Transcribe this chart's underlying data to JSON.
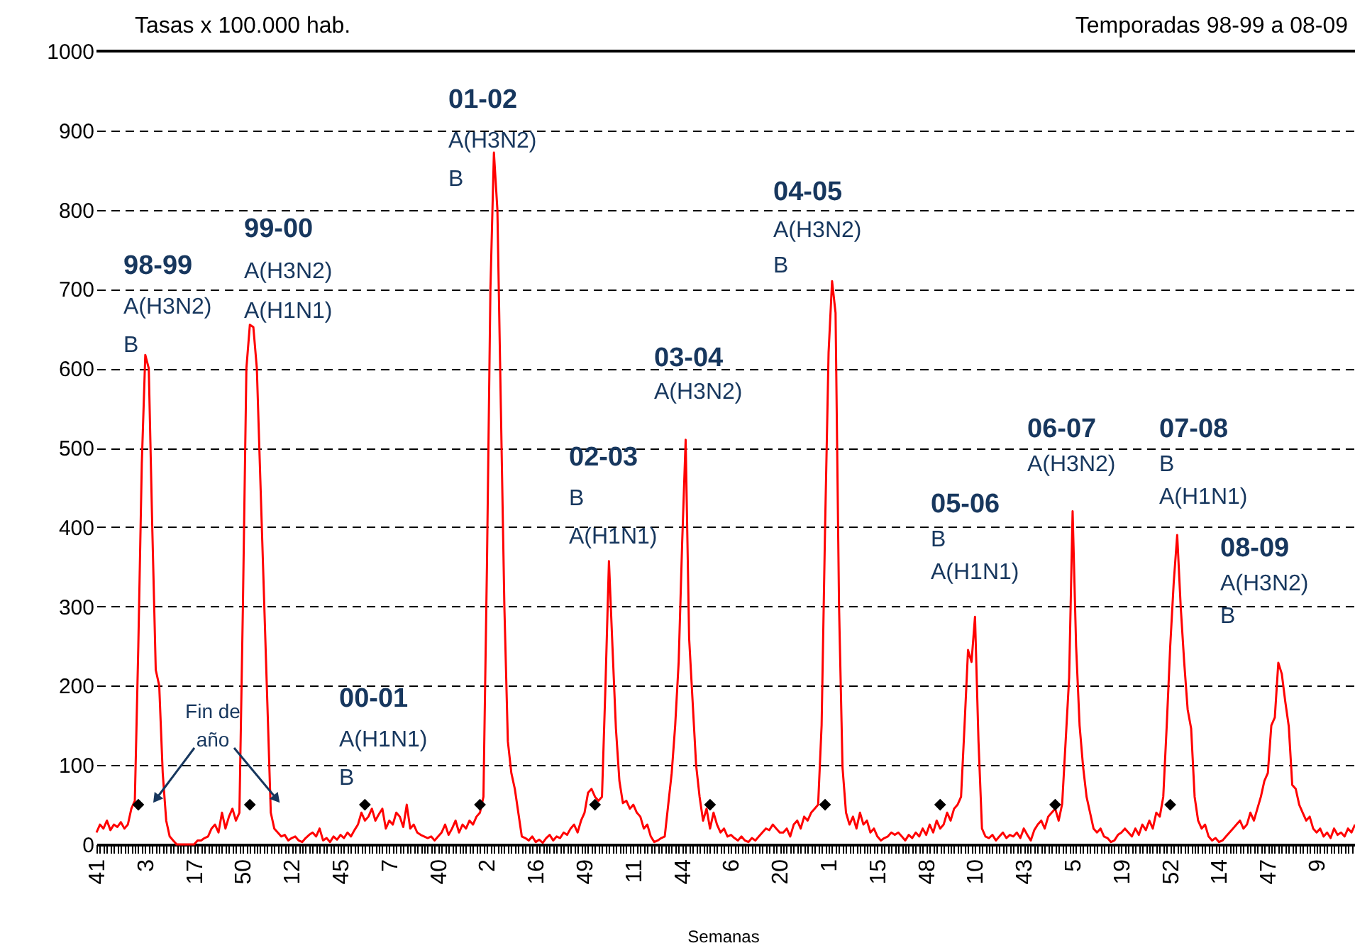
{
  "chart_data": {
    "type": "line",
    "title": "Temporadas 98-99 a 08-09",
    "ylabel": "Tasas  x 100.000 hab.",
    "xlabel": "Semanas",
    "categories": [
      "41",
      null,
      null,
      null,
      null,
      null,
      null,
      null,
      null,
      null,
      null,
      null,
      null,
      null,
      "3",
      null,
      null,
      null,
      null,
      null,
      null,
      null,
      null,
      null,
      null,
      null,
      null,
      null,
      "17",
      null,
      null,
      null,
      null,
      null,
      null,
      null,
      null,
      null,
      null,
      null,
      null,
      null,
      "50",
      null,
      null,
      null,
      null,
      null,
      null,
      null,
      null,
      null,
      null,
      null,
      null,
      null,
      "12",
      null,
      null,
      null,
      null,
      null,
      null,
      null,
      null,
      null,
      null,
      null,
      null,
      null,
      "45",
      null,
      null,
      null,
      null,
      null,
      null,
      null,
      null,
      null,
      null,
      null,
      null,
      null,
      "7",
      null,
      null,
      null,
      null,
      null,
      null,
      null,
      null,
      null,
      null,
      null,
      null,
      null,
      "40",
      null,
      null,
      null,
      null,
      null,
      null,
      null,
      null,
      null,
      null,
      null,
      null,
      null,
      "2",
      null,
      null,
      null,
      null,
      null,
      null,
      null,
      null,
      null,
      null,
      null,
      null,
      null,
      "16",
      null,
      null,
      null,
      null,
      null,
      null,
      null,
      null,
      null,
      null,
      null,
      null,
      null,
      "49",
      null,
      null,
      null,
      null,
      null,
      null,
      null,
      null,
      null,
      null,
      null,
      null,
      null,
      "11",
      null,
      null,
      null,
      null,
      null,
      null,
      null,
      null,
      null,
      null,
      null,
      null,
      null,
      "44",
      null,
      null,
      null,
      null,
      null,
      null,
      null,
      null,
      null,
      null,
      null,
      null,
      null,
      "6",
      null,
      null,
      null,
      null,
      null,
      null,
      null,
      null,
      null,
      null,
      null,
      null,
      null,
      "20",
      null,
      null,
      null,
      null,
      null,
      null,
      null,
      null,
      null,
      null,
      null,
      null,
      null,
      "1",
      null,
      null,
      null,
      null,
      null,
      null,
      null,
      null,
      null,
      null,
      null,
      null,
      null,
      "15",
      null,
      null,
      null,
      null,
      null,
      null,
      null,
      null,
      null,
      null,
      null,
      null,
      null,
      "48",
      null,
      null,
      null,
      null,
      null,
      null,
      null,
      null,
      null,
      null,
      null,
      null,
      null,
      "10",
      null,
      null,
      null,
      null,
      null,
      null,
      null,
      null,
      null,
      null,
      null,
      null,
      null,
      "43",
      null,
      null,
      null,
      null,
      null,
      null,
      null,
      null,
      null,
      null,
      null,
      null,
      null,
      "5",
      null,
      null,
      null,
      null,
      null,
      null,
      null,
      null,
      null,
      null,
      null,
      null,
      null,
      "19",
      null,
      null,
      null,
      null,
      null,
      null,
      null,
      null,
      null,
      null,
      null,
      null,
      null,
      "52",
      null,
      null,
      null,
      null,
      null,
      null,
      null,
      null,
      null,
      null,
      null,
      null,
      null,
      "14",
      null,
      null,
      null,
      null,
      null,
      null,
      null,
      null,
      null,
      null,
      null,
      null,
      null,
      "47",
      null,
      null,
      null,
      null,
      null,
      null,
      null,
      null,
      null,
      null,
      null,
      null,
      null,
      "9",
      null,
      null,
      null,
      null,
      null,
      null,
      null,
      null,
      null,
      null,
      null
    ],
    "series": [
      {
        "color": "#ff0000",
        "marker": "none",
        "values": [
          15,
          25,
          20,
          30,
          18,
          25,
          22,
          28,
          20,
          25,
          45,
          55,
          250,
          480,
          617,
          600,
          400,
          220,
          200,
          90,
          30,
          10,
          5,
          0,
          0,
          0,
          0,
          0,
          0,
          5,
          5,
          8,
          10,
          20,
          25,
          15,
          40,
          20,
          35,
          45,
          30,
          40,
          300,
          600,
          655,
          652,
          600,
          460,
          320,
          180,
          40,
          20,
          15,
          10,
          12,
          5,
          8,
          10,
          5,
          3,
          8,
          12,
          15,
          10,
          20,
          5,
          8,
          3,
          10,
          6,
          12,
          8,
          15,
          10,
          18,
          25,
          40,
          30,
          35,
          45,
          30,
          38,
          45,
          20,
          30,
          25,
          40,
          35,
          22,
          50,
          20,
          25,
          15,
          12,
          10,
          8,
          10,
          5,
          10,
          15,
          25,
          12,
          20,
          30,
          15,
          25,
          20,
          30,
          25,
          35,
          40,
          60,
          350,
          700,
          872,
          800,
          550,
          300,
          130,
          90,
          70,
          40,
          10,
          8,
          5,
          10,
          3,
          6,
          2,
          8,
          12,
          5,
          10,
          8,
          15,
          12,
          20,
          25,
          15,
          30,
          40,
          65,
          70,
          60,
          55,
          60,
          200,
          357,
          250,
          146,
          80,
          52,
          55,
          45,
          50,
          40,
          35,
          20,
          25,
          10,
          3,
          5,
          8,
          10,
          50,
          90,
          150,
          230,
          380,
          510,
          260,
          180,
          100,
          60,
          30,
          45,
          20,
          40,
          25,
          15,
          20,
          10,
          12,
          8,
          5,
          10,
          5,
          3,
          8,
          5,
          10,
          15,
          20,
          18,
          25,
          20,
          15,
          15,
          20,
          10,
          25,
          30,
          20,
          35,
          30,
          40,
          45,
          50,
          150,
          400,
          620,
          710,
          670,
          300,
          97,
          40,
          25,
          35,
          20,
          40,
          25,
          30,
          15,
          20,
          10,
          5,
          8,
          10,
          15,
          12,
          15,
          10,
          5,
          12,
          8,
          15,
          10,
          20,
          12,
          25,
          15,
          30,
          20,
          25,
          40,
          30,
          45,
          50,
          60,
          150,
          245,
          230,
          287,
          130,
          20,
          10,
          8,
          12,
          5,
          10,
          15,
          8,
          12,
          10,
          15,
          8,
          20,
          12,
          5,
          18,
          25,
          30,
          20,
          35,
          40,
          45,
          30,
          51,
          130,
          210,
          420,
          250,
          150,
          98,
          60,
          40,
          20,
          15,
          20,
          10,
          8,
          3,
          5,
          12,
          15,
          20,
          15,
          10,
          20,
          12,
          25,
          18,
          30,
          20,
          40,
          35,
          60,
          150,
          250,
          330,
          390,
          300,
          230,
          170,
          146,
          60,
          30,
          20,
          25,
          10,
          5,
          8,
          3,
          5,
          10,
          15,
          20,
          25,
          30,
          20,
          25,
          40,
          30,
          45,
          60,
          80,
          90,
          150,
          160,
          229,
          215,
          180,
          149,
          75,
          70,
          50,
          40,
          30,
          35,
          20,
          15,
          20,
          10,
          15,
          8,
          20,
          12,
          15,
          10,
          20,
          15,
          25
        ]
      },
      {
        "type": "scatter",
        "marker": "diamond",
        "color": "#000000",
        "values": [
          null,
          null,
          null,
          null,
          null,
          null,
          null,
          null,
          null,
          null,
          null,
          null,
          50,
          null,
          null,
          null,
          null,
          null,
          null,
          null,
          null,
          null,
          null,
          null,
          null,
          null,
          null,
          null,
          null,
          null,
          null,
          null,
          null,
          null,
          null,
          null,
          null,
          null,
          null,
          null,
          null,
          null,
          null,
          null,
          50,
          null,
          null,
          null,
          null,
          null,
          null,
          null,
          null,
          null,
          null,
          null,
          null,
          null,
          null,
          null,
          null,
          null,
          null,
          null,
          null,
          null,
          null,
          null,
          null,
          null,
          null,
          null,
          null,
          null,
          null,
          null,
          null,
          50,
          null,
          null,
          null,
          null,
          null,
          null,
          null,
          null,
          null,
          null,
          null,
          null,
          null,
          null,
          null,
          null,
          null,
          null,
          null,
          null,
          null,
          null,
          null,
          null,
          null,
          null,
          null,
          null,
          null,
          null,
          null,
          null,
          50,
          null,
          null,
          null,
          null,
          null,
          null,
          null,
          null,
          null,
          null,
          null,
          null,
          null,
          null,
          null,
          null,
          null,
          null,
          null,
          null,
          null,
          null,
          null,
          null,
          null,
          null,
          null,
          null,
          null,
          null,
          null,
          null,
          50,
          null,
          null,
          null,
          null,
          null,
          null,
          null,
          null,
          null,
          null,
          null,
          null,
          null,
          null,
          null,
          null,
          null,
          null,
          null,
          null,
          null,
          null,
          null,
          null,
          null,
          null,
          null,
          null,
          null,
          null,
          null,
          null,
          50,
          null,
          null,
          null,
          null,
          null,
          null,
          null,
          null,
          null,
          null,
          null,
          null,
          null,
          null,
          null,
          null,
          null,
          null,
          null,
          null,
          null,
          null,
          null,
          null,
          null,
          null,
          null,
          null,
          null,
          null,
          null,
          null,
          50,
          null,
          null,
          null,
          null,
          null,
          null,
          null,
          null,
          null,
          null,
          null,
          null,
          null,
          null,
          null,
          null,
          null,
          null,
          null,
          null,
          null,
          null,
          null,
          null,
          null,
          null,
          null,
          null,
          null,
          null,
          null,
          null,
          50,
          null,
          null,
          null,
          null,
          null,
          null,
          null,
          null,
          null,
          null,
          null,
          null,
          null,
          null,
          null,
          null,
          null,
          null,
          null,
          null,
          null,
          null,
          null,
          null,
          null,
          null,
          null,
          null,
          null,
          null,
          null,
          null,
          50,
          null,
          null,
          null,
          null,
          null,
          null,
          null,
          null,
          null,
          null,
          null,
          null,
          null,
          null,
          null,
          null,
          null,
          null,
          null,
          null,
          null,
          null,
          null,
          null,
          null,
          null,
          null,
          null,
          null,
          null,
          null,
          null,
          50,
          null,
          null,
          null,
          null,
          null,
          null,
          null,
          null,
          null,
          null,
          null,
          null,
          null,
          null,
          null,
          null,
          null,
          null,
          null,
          null,
          null,
          null,
          null,
          null,
          null,
          null,
          null,
          null,
          null,
          null,
          null,
          null,
          null,
          null,
          null,
          null,
          null,
          null,
          null,
          null,
          null,
          null,
          null,
          null,
          null,
          null,
          null,
          null,
          null,
          null,
          null,
          null,
          null
        ]
      }
    ],
    "ylim": [
      0,
      1000
    ],
    "yticks": [
      0,
      100,
      200,
      300,
      400,
      500,
      600,
      700,
      800,
      900,
      1000
    ],
    "grid": "y",
    "annotations": [
      "98-99\nA(H3N2)\nB",
      "99-00\nA(H3N2)\nA(H1N1)",
      "00-01\nA(H1N1)\nB",
      "01-02\nA(H3N2)\nB",
      "02-03\nB\nA(H1N1)",
      "03-04\nA(H3N2)",
      "04-05\nA(H3N2)\nB",
      "05-06\nB\nA(H1N1)",
      "06-07\nA(H3N2)",
      "07-08\nB\nA(H1N1)",
      "08-09\nA(H3N2)\nB",
      "Fin de\naño"
    ]
  }
}
